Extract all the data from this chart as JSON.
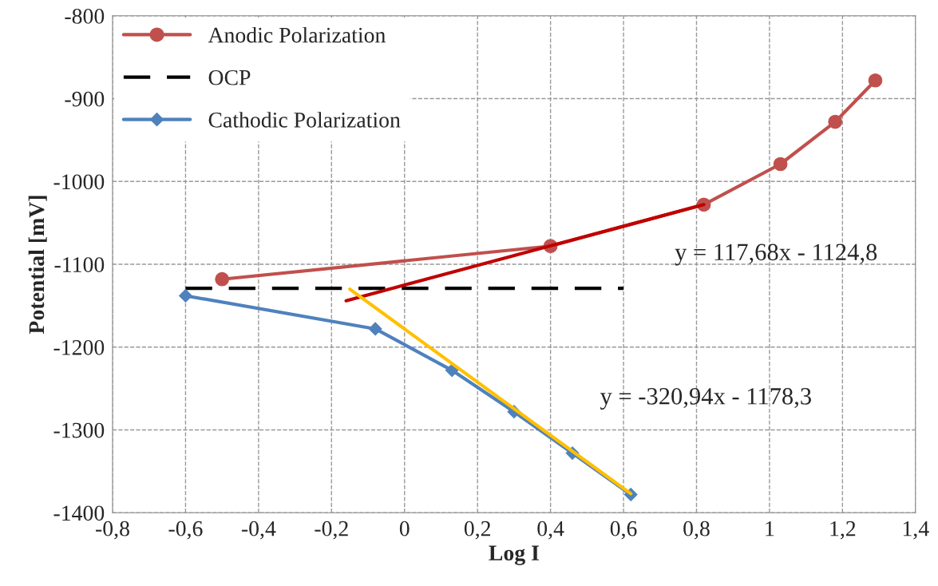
{
  "chart_data": {
    "type": "line",
    "xlabel": "Log I",
    "ylabel": "Potential [mV]",
    "xlim": [
      -0.8,
      1.4
    ],
    "ylim": [
      -1400,
      -800
    ],
    "xticks": [
      {
        "value": -0.8,
        "label": "-0,8"
      },
      {
        "value": -0.6,
        "label": "-0,6"
      },
      {
        "value": -0.4,
        "label": "-0,4"
      },
      {
        "value": -0.2,
        "label": "-0,2"
      },
      0,
      {
        "value": 0.2,
        "label": "0,2"
      },
      {
        "value": 0.4,
        "label": "0,4"
      },
      {
        "value": 0.6,
        "label": "0,6"
      },
      {
        "value": 0.8,
        "label": "0,8"
      },
      1,
      {
        "value": 1.2,
        "label": "1,2"
      },
      {
        "value": 1.4,
        "label": "1,4"
      }
    ],
    "yticks": [
      -1400,
      -1300,
      -1200,
      -1100,
      -1000,
      -900,
      -800
    ],
    "grid": true,
    "legend": "top left",
    "series": [
      {
        "name": "Anodic Polarization",
        "color": "#c0504d",
        "marker": "circle",
        "line_style": "solid",
        "x": [
          -0.5,
          0.4,
          0.82,
          1.03,
          1.18,
          1.29
        ],
        "values": [
          -1118,
          -1078,
          -1028,
          -979,
          -928,
          -878
        ]
      },
      {
        "name": "OCP",
        "color": "#000000",
        "marker": "none",
        "line_style": "dashed",
        "x": [
          -0.6,
          0.6
        ],
        "values": [
          -1129,
          -1129
        ]
      },
      {
        "name": "Cathodic Polarization",
        "color": "#4f81bd",
        "marker": "diamond",
        "line_style": "solid",
        "x": [
          -0.6,
          -0.08,
          0.13,
          0.3,
          0.46,
          0.62
        ],
        "values": [
          -1138,
          -1178,
          -1228,
          -1278,
          -1328,
          -1378
        ]
      },
      {
        "color": "#c00000",
        "marker": "none",
        "line_style": "solid",
        "x": [
          -0.16,
          0.82
        ],
        "values": [
          -1144,
          -1028
        ]
      },
      {
        "color": "#ffc000",
        "marker": "none",
        "line_style": "solid",
        "x": [
          -0.15,
          0.62
        ],
        "values": [
          -1130,
          -1377
        ]
      }
    ],
    "annotations": [
      "y = 117,68x - 1124,8",
      "y = -320,94x - 1178,3"
    ]
  }
}
